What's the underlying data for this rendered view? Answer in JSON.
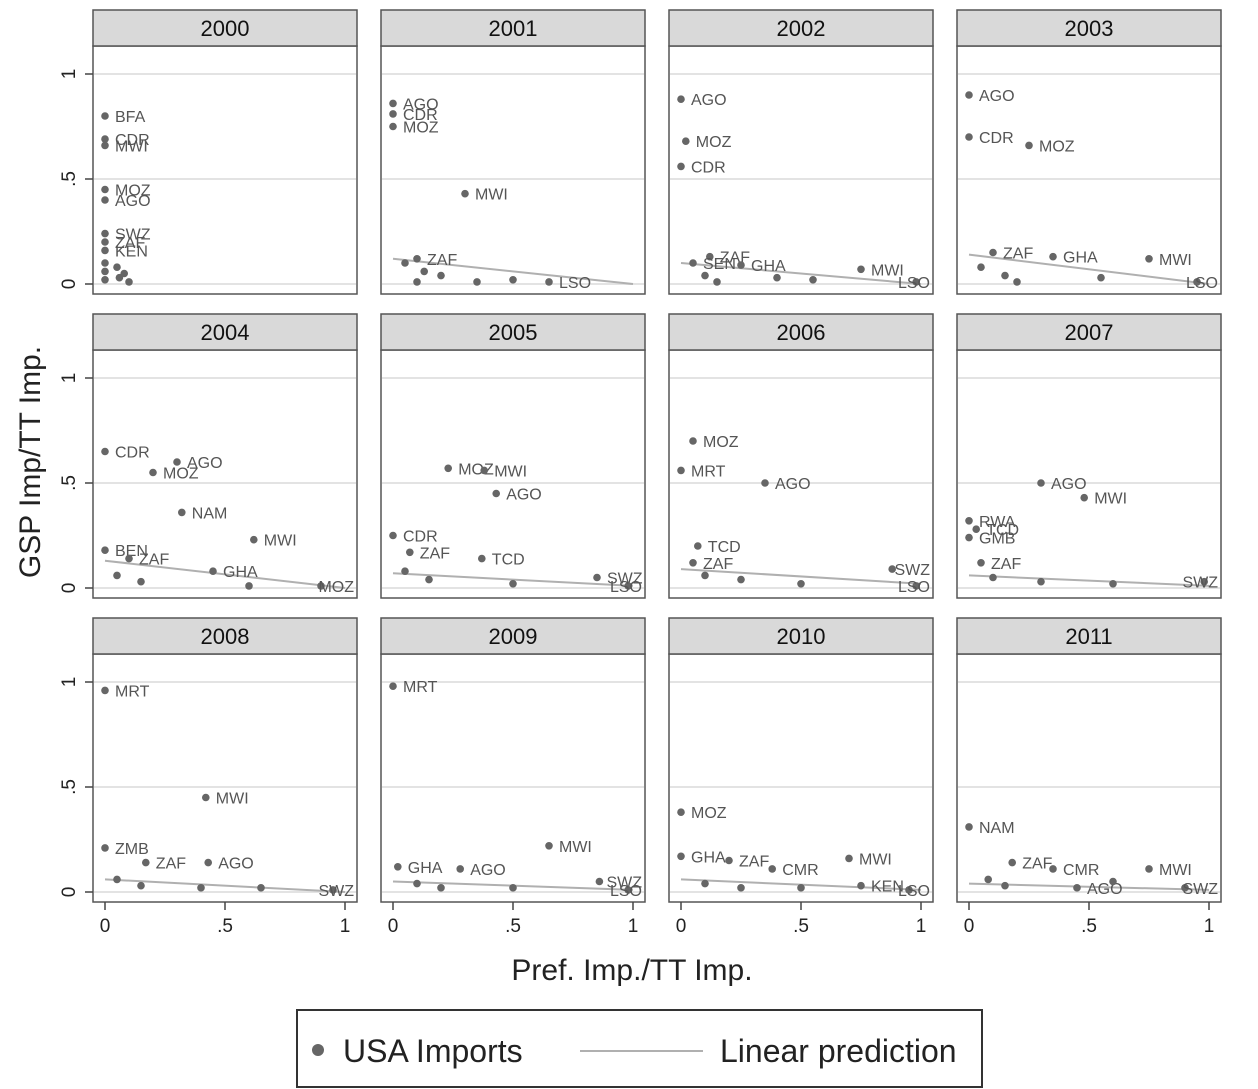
{
  "chart_data": {
    "type": "scatter",
    "xlabel": "Pref. Imp./TT Imp.",
    "ylabel": "GSP Imp/TT Imp.",
    "xlim": [
      0,
      1
    ],
    "ylim": [
      0,
      1
    ],
    "x_ticks": [
      {
        "value": 0,
        "label": "0"
      },
      {
        "value": 0.5,
        "label": ".5"
      },
      {
        "value": 1,
        "label": "1"
      }
    ],
    "y_ticks": [
      {
        "value": 0,
        "label": "0"
      },
      {
        "value": 0.5,
        "label": ".5"
      },
      {
        "value": 1,
        "label": "1"
      }
    ],
    "grid": true,
    "legend": {
      "placement": "bottom",
      "entries": [
        {
          "label": "USA Imports",
          "kind": "marker"
        },
        {
          "label": "Linear prediction",
          "kind": "line"
        }
      ]
    },
    "colors": {
      "marker": "#666666",
      "fit": "#b0b0b0",
      "strip": "#d9d9d9"
    },
    "panels": [
      {
        "title": "2000",
        "points": [
          {
            "x": 0,
            "y": 0.8,
            "label": "BFA"
          },
          {
            "x": 0,
            "y": 0.69,
            "label": "CDR"
          },
          {
            "x": 0,
            "y": 0.66,
            "label": "MWI"
          },
          {
            "x": 0,
            "y": 0.45,
            "label": "MOZ"
          },
          {
            "x": 0,
            "y": 0.4,
            "label": "AGO"
          },
          {
            "x": 0,
            "y": 0.24,
            "label": "SWZ"
          },
          {
            "x": 0,
            "y": 0.2,
            "label": "ZAF"
          },
          {
            "x": 0,
            "y": 0.16,
            "label": "KEN"
          },
          {
            "x": 0,
            "y": 0.1,
            "label": ""
          },
          {
            "x": 0,
            "y": 0.06,
            "label": ""
          },
          {
            "x": 0,
            "y": 0.02,
            "label": ""
          },
          {
            "x": 0.05,
            "y": 0.08,
            "label": ""
          },
          {
            "x": 0.06,
            "y": 0.03,
            "label": ""
          },
          {
            "x": 0.08,
            "y": 0.05,
            "label": ""
          },
          {
            "x": 0.1,
            "y": 0.01,
            "label": ""
          }
        ],
        "fit": []
      },
      {
        "title": "2001",
        "points": [
          {
            "x": 0,
            "y": 0.86,
            "label": "AGO"
          },
          {
            "x": 0,
            "y": 0.81,
            "label": "CDR"
          },
          {
            "x": 0,
            "y": 0.75,
            "label": "MOZ"
          },
          {
            "x": 0.3,
            "y": 0.43,
            "label": "MWI"
          },
          {
            "x": 0.1,
            "y": 0.12,
            "label": "ZAF"
          },
          {
            "x": 0.05,
            "y": 0.1,
            "label": ""
          },
          {
            "x": 0.13,
            "y": 0.06,
            "label": ""
          },
          {
            "x": 0.2,
            "y": 0.04,
            "label": ""
          },
          {
            "x": 0.35,
            "y": 0.01,
            "label": ""
          },
          {
            "x": 0.5,
            "y": 0.02,
            "label": ""
          },
          {
            "x": 0.65,
            "y": 0.01,
            "label": "LSO"
          },
          {
            "x": 0.1,
            "y": 0.01,
            "label": ""
          }
        ],
        "fit": [
          0.12,
          0.0
        ]
      },
      {
        "title": "2002",
        "points": [
          {
            "x": 0,
            "y": 0.88,
            "label": "AGO"
          },
          {
            "x": 0.02,
            "y": 0.68,
            "label": "MOZ"
          },
          {
            "x": 0,
            "y": 0.56,
            "label": "CDR"
          },
          {
            "x": 0.12,
            "y": 0.13,
            "label": "ZAF"
          },
          {
            "x": 0.05,
            "y": 0.1,
            "label": "SEN"
          },
          {
            "x": 0.25,
            "y": 0.09,
            "label": "GHA"
          },
          {
            "x": 0.1,
            "y": 0.04,
            "label": ""
          },
          {
            "x": 0.4,
            "y": 0.03,
            "label": ""
          },
          {
            "x": 0.55,
            "y": 0.02,
            "label": ""
          },
          {
            "x": 0.75,
            "y": 0.07,
            "label": "MWI"
          },
          {
            "x": 0.98,
            "y": 0.01,
            "label": "LSO"
          },
          {
            "x": 0.15,
            "y": 0.01,
            "label": ""
          }
        ],
        "fit": [
          0.1,
          0.0
        ]
      },
      {
        "title": "2003",
        "points": [
          {
            "x": 0,
            "y": 0.9,
            "label": "AGO"
          },
          {
            "x": 0,
            "y": 0.7,
            "label": "CDR"
          },
          {
            "x": 0.25,
            "y": 0.66,
            "label": "MOZ"
          },
          {
            "x": 0.1,
            "y": 0.15,
            "label": "ZAF"
          },
          {
            "x": 0.35,
            "y": 0.13,
            "label": "GHA"
          },
          {
            "x": 0.05,
            "y": 0.08,
            "label": ""
          },
          {
            "x": 0.15,
            "y": 0.04,
            "label": ""
          },
          {
            "x": 0.55,
            "y": 0.03,
            "label": ""
          },
          {
            "x": 0.75,
            "y": 0.12,
            "label": "MWI"
          },
          {
            "x": 0.95,
            "y": 0.01,
            "label": "LSO"
          },
          {
            "x": 0.2,
            "y": 0.01,
            "label": ""
          }
        ],
        "fit": [
          0.14,
          0.0
        ]
      },
      {
        "title": "2004",
        "points": [
          {
            "x": 0,
            "y": 0.65,
            "label": "CDR"
          },
          {
            "x": 0.3,
            "y": 0.6,
            "label": "AGO"
          },
          {
            "x": 0.2,
            "y": 0.55,
            "label": "MOZ"
          },
          {
            "x": 0.32,
            "y": 0.36,
            "label": "NAM"
          },
          {
            "x": 0.62,
            "y": 0.23,
            "label": "MWI"
          },
          {
            "x": 0,
            "y": 0.18,
            "label": "BEN"
          },
          {
            "x": 0.1,
            "y": 0.14,
            "label": "ZAF"
          },
          {
            "x": 0.45,
            "y": 0.08,
            "label": "GHA"
          },
          {
            "x": 0.05,
            "y": 0.06,
            "label": ""
          },
          {
            "x": 0.15,
            "y": 0.03,
            "label": ""
          },
          {
            "x": 0.6,
            "y": 0.01,
            "label": ""
          },
          {
            "x": 0.9,
            "y": 0.01,
            "label": "MOZ"
          }
        ],
        "fit": [
          0.13,
          0.0
        ]
      },
      {
        "title": "2005",
        "points": [
          {
            "x": 0.23,
            "y": 0.57,
            "label": "MOZ"
          },
          {
            "x": 0.38,
            "y": 0.56,
            "label": "MWI"
          },
          {
            "x": 0.43,
            "y": 0.45,
            "label": "AGO"
          },
          {
            "x": 0,
            "y": 0.25,
            "label": "CDR"
          },
          {
            "x": 0.07,
            "y": 0.17,
            "label": "ZAF"
          },
          {
            "x": 0.37,
            "y": 0.14,
            "label": "TCD"
          },
          {
            "x": 0.05,
            "y": 0.08,
            "label": ""
          },
          {
            "x": 0.15,
            "y": 0.04,
            "label": ""
          },
          {
            "x": 0.5,
            "y": 0.02,
            "label": ""
          },
          {
            "x": 0.85,
            "y": 0.05,
            "label": "SWZ"
          },
          {
            "x": 0.98,
            "y": 0.01,
            "label": "LSO"
          }
        ],
        "fit": [
          0.07,
          0.01
        ]
      },
      {
        "title": "2006",
        "points": [
          {
            "x": 0.05,
            "y": 0.7,
            "label": "MOZ"
          },
          {
            "x": 0,
            "y": 0.56,
            "label": "MRT"
          },
          {
            "x": 0.35,
            "y": 0.5,
            "label": "AGO"
          },
          {
            "x": 0.07,
            "y": 0.2,
            "label": "TCD"
          },
          {
            "x": 0.05,
            "y": 0.12,
            "label": "ZAF"
          },
          {
            "x": 0.1,
            "y": 0.06,
            "label": ""
          },
          {
            "x": 0.25,
            "y": 0.04,
            "label": ""
          },
          {
            "x": 0.5,
            "y": 0.02,
            "label": ""
          },
          {
            "x": 0.88,
            "y": 0.09,
            "label": "SWZ"
          },
          {
            "x": 0.98,
            "y": 0.01,
            "label": "LSO"
          }
        ],
        "fit": [
          0.09,
          0.02
        ]
      },
      {
        "title": "2007",
        "points": [
          {
            "x": 0.3,
            "y": 0.5,
            "label": "AGO"
          },
          {
            "x": 0.48,
            "y": 0.43,
            "label": "MWI"
          },
          {
            "x": 0,
            "y": 0.32,
            "label": "RWA"
          },
          {
            "x": 0.03,
            "y": 0.28,
            "label": "TCD"
          },
          {
            "x": 0,
            "y": 0.24,
            "label": "GMB"
          },
          {
            "x": 0.05,
            "y": 0.12,
            "label": "ZAF"
          },
          {
            "x": 0.1,
            "y": 0.05,
            "label": ""
          },
          {
            "x": 0.3,
            "y": 0.03,
            "label": ""
          },
          {
            "x": 0.6,
            "y": 0.02,
            "label": ""
          },
          {
            "x": 0.98,
            "y": 0.03,
            "label": "SWZ"
          }
        ],
        "fit": [
          0.06,
          0.01
        ]
      },
      {
        "title": "2008",
        "points": [
          {
            "x": 0,
            "y": 0.96,
            "label": "MRT"
          },
          {
            "x": 0.42,
            "y": 0.45,
            "label": "MWI"
          },
          {
            "x": 0,
            "y": 0.21,
            "label": "ZMB"
          },
          {
            "x": 0.17,
            "y": 0.14,
            "label": "ZAF"
          },
          {
            "x": 0.43,
            "y": 0.14,
            "label": "AGO"
          },
          {
            "x": 0.05,
            "y": 0.06,
            "label": ""
          },
          {
            "x": 0.15,
            "y": 0.03,
            "label": ""
          },
          {
            "x": 0.4,
            "y": 0.02,
            "label": ""
          },
          {
            "x": 0.65,
            "y": 0.02,
            "label": ""
          },
          {
            "x": 0.95,
            "y": 0.01,
            "label": "SWZ"
          }
        ],
        "fit": [
          0.06,
          0.0
        ]
      },
      {
        "title": "2009",
        "points": [
          {
            "x": 0,
            "y": 0.98,
            "label": "MRT"
          },
          {
            "x": 0.65,
            "y": 0.22,
            "label": "MWI"
          },
          {
            "x": 0.02,
            "y": 0.12,
            "label": "GHA"
          },
          {
            "x": 0.28,
            "y": 0.11,
            "label": "AGO"
          },
          {
            "x": 0.1,
            "y": 0.04,
            "label": ""
          },
          {
            "x": 0.2,
            "y": 0.02,
            "label": ""
          },
          {
            "x": 0.5,
            "y": 0.02,
            "label": ""
          },
          {
            "x": 0.86,
            "y": 0.05,
            "label": "SWZ"
          },
          {
            "x": 0.98,
            "y": 0.01,
            "label": "LSO"
          }
        ],
        "fit": [
          0.05,
          0.01
        ]
      },
      {
        "title": "2010",
        "points": [
          {
            "x": 0,
            "y": 0.38,
            "label": "MOZ"
          },
          {
            "x": 0,
            "y": 0.17,
            "label": "GHA"
          },
          {
            "x": 0.2,
            "y": 0.15,
            "label": "ZAF"
          },
          {
            "x": 0.38,
            "y": 0.11,
            "label": "CMR"
          },
          {
            "x": 0.7,
            "y": 0.16,
            "label": "MWI"
          },
          {
            "x": 0.1,
            "y": 0.04,
            "label": ""
          },
          {
            "x": 0.25,
            "y": 0.02,
            "label": ""
          },
          {
            "x": 0.5,
            "y": 0.02,
            "label": ""
          },
          {
            "x": 0.75,
            "y": 0.03,
            "label": "KEN"
          },
          {
            "x": 0.95,
            "y": 0.01,
            "label": "LSO"
          }
        ],
        "fit": [
          0.06,
          0.01
        ]
      },
      {
        "title": "2011",
        "points": [
          {
            "x": 0,
            "y": 0.31,
            "label": "NAM"
          },
          {
            "x": 0.18,
            "y": 0.14,
            "label": "ZAF"
          },
          {
            "x": 0.35,
            "y": 0.11,
            "label": "CMR"
          },
          {
            "x": 0.75,
            "y": 0.11,
            "label": "MWI"
          },
          {
            "x": 0.08,
            "y": 0.06,
            "label": ""
          },
          {
            "x": 0.15,
            "y": 0.03,
            "label": ""
          },
          {
            "x": 0.45,
            "y": 0.02,
            "label": "AGO"
          },
          {
            "x": 0.6,
            "y": 0.05,
            "label": ""
          },
          {
            "x": 0.9,
            "y": 0.02,
            "label": "SWZ"
          }
        ],
        "fit": [
          0.04,
          0.01
        ]
      }
    ]
  }
}
